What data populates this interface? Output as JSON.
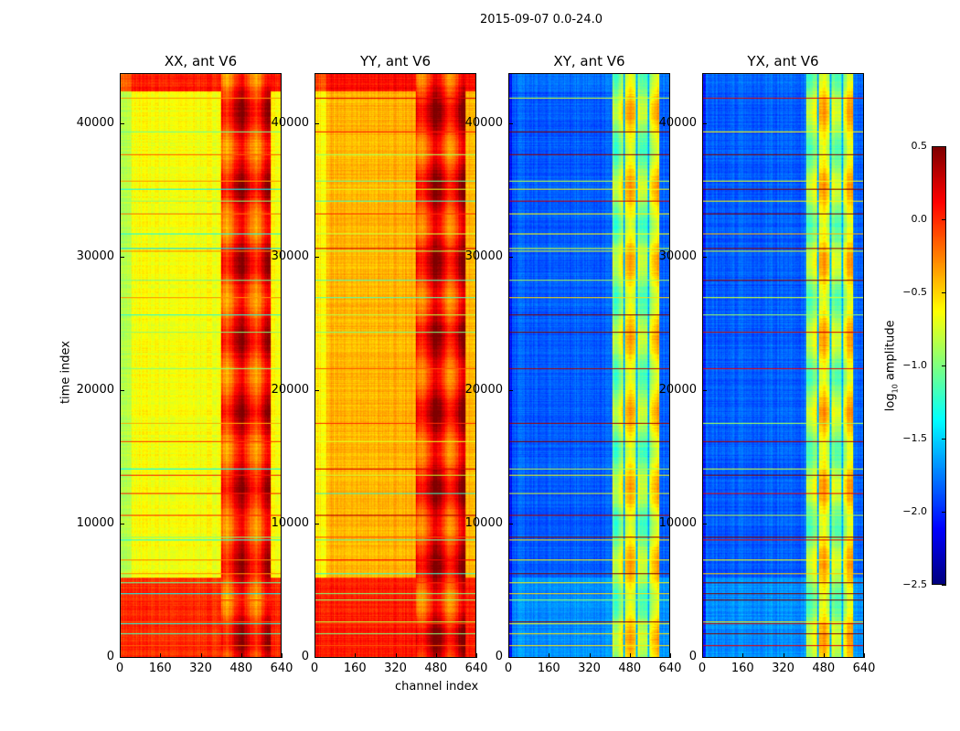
{
  "chart_data": {
    "type": "heatmap",
    "title": "2015-09-07 0.0-24.0",
    "xlabel": "channel index",
    "ylabel": "time index",
    "xlim": [
      0,
      640
    ],
    "ylim": [
      0,
      43800
    ],
    "xticks": [
      "0",
      "160",
      "320",
      "480",
      "640"
    ],
    "yticks": [
      "0",
      "10000",
      "20000",
      "30000",
      "40000"
    ],
    "colorbar": {
      "label": "log10 amplitude",
      "label_main": "log",
      "label_sub": "10",
      "label_tail": " amplitude",
      "range": [
        -2.5,
        0.5
      ],
      "ticks": [
        "0.5",
        "0.0",
        "−0.5",
        "−1.0",
        "−1.5",
        "−2.0",
        "−2.5"
      ],
      "colormap": "jet"
    },
    "panels": [
      {
        "title": "XX, ant V6",
        "base": -0.65,
        "low_time_level": 0.0,
        "band": [
          400,
          600
        ],
        "band_level": 0.05,
        "top_level": 0.05
      },
      {
        "title": "YY, ant V6",
        "base": -0.4,
        "low_time_level": 0.05,
        "band": [
          400,
          600
        ],
        "band_level": 0.1,
        "top_level": 0.1
      },
      {
        "title": "XY, ant V6",
        "base": -1.85,
        "low_time_level": -1.7,
        "band": [
          410,
          600
        ],
        "band_level": -0.75,
        "top_level": -1.8
      },
      {
        "title": "YX, ant V6",
        "base": -1.85,
        "low_time_level": -1.7,
        "band": [
          410,
          600
        ],
        "band_level": -0.75,
        "top_level": -1.8
      }
    ],
    "low_time_end": 6000,
    "top_time_start": 42500,
    "stripe_times": [
      900,
      1800,
      2500,
      2700,
      4300,
      4800,
      5600,
      6300,
      7300,
      8800,
      9000,
      10700,
      12300,
      13700,
      14200,
      16200,
      17600,
      21700,
      24400,
      25700,
      27000,
      28300,
      30500,
      30700,
      31800,
      33300,
      34300,
      35200,
      35800,
      37800,
      39500,
      42000
    ]
  }
}
